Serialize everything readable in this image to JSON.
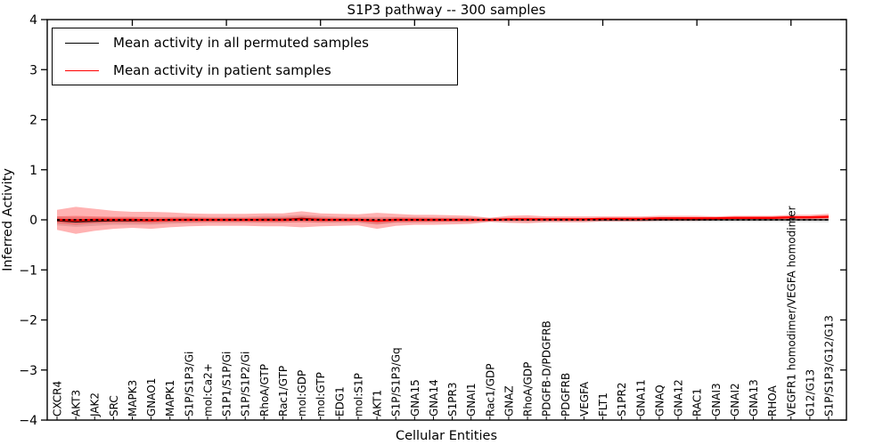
{
  "chart_data": {
    "type": "line",
    "title": "S1P3 pathway -- 300 samples",
    "xlabel": "Cellular Entities",
    "ylabel": "Inferred Activity",
    "ylim": [
      -4,
      4
    ],
    "yticks": [
      "−4",
      "−3",
      "−2",
      "−1",
      "0",
      "1",
      "2",
      "3",
      "4"
    ],
    "ytick_values": [
      -4,
      -3,
      -2,
      -1,
      0,
      1,
      2,
      3,
      4
    ],
    "grid": false,
    "legend_position": "upper-left",
    "zero_line": {
      "style": "dashed",
      "color": "#000000"
    },
    "top_tick_indices": [
      4,
      9,
      14,
      19,
      24,
      29,
      34,
      39
    ],
    "categories": [
      "CXCR4",
      "AKT3",
      "JAK2",
      "SRC",
      "MAPK3",
      "GNAO1",
      "MAPK1",
      "S1P/S1P3/Gi",
      "mol:Ca2+",
      "S1P1/S1P/Gi",
      "S1P/S1P2/Gi",
      "RhoA/GTP",
      "Rac1/GTP",
      "mol:GDP",
      "mol:GTP",
      "EDG1",
      "mol:S1P",
      "AKT1",
      "S1P/S1P3/Gq",
      "GNA15",
      "GNA14",
      "S1PR3",
      "GNAI1",
      "Rac1/GDP",
      "GNAZ",
      "RhoA/GDP",
      "PDGFB-D/PDGFRB",
      "PDGFRB",
      "VEGFA",
      "FLT1",
      "S1PR2",
      "GNA11",
      "GNAQ",
      "GNA12",
      "RAC1",
      "GNAI3",
      "GNAI2",
      "GNA13",
      "RHOA",
      "VEGFR1 homodimer/VEGFA homodimer",
      "G12/G13",
      "S1P/S1P3/G12/G13"
    ],
    "legend": [
      {
        "label": "Mean activity in all permuted samples",
        "color": "#000000"
      },
      {
        "label": "Mean activity in patient samples",
        "color": "#ff0000"
      }
    ],
    "series": [
      {
        "name": "Mean activity in all permuted samples",
        "color": "#000000",
        "width": 1.2,
        "values": [
          -0.02,
          -0.04,
          -0.03,
          -0.02,
          -0.02,
          -0.02,
          -0.01,
          0,
          0,
          0,
          0,
          0.01,
          0.01,
          0.03,
          0.01,
          0,
          0,
          -0.02,
          0,
          0,
          0,
          0,
          0,
          0,
          0,
          0,
          0,
          0,
          0,
          0,
          0,
          0,
          0,
          0,
          0,
          0,
          0,
          0,
          0,
          0,
          0,
          0
        ]
      },
      {
        "name": "Mean activity in patient samples",
        "color": "#ff0000",
        "width": 2.4,
        "values": [
          0,
          -0.01,
          0,
          0,
          0,
          -0.01,
          0,
          0,
          0,
          0,
          0,
          0,
          0,
          0.01,
          0,
          0,
          0,
          -0.02,
          0,
          0,
          0,
          0,
          0,
          0,
          0.01,
          0.01,
          0.01,
          0.01,
          0.01,
          0.02,
          0.02,
          0.02,
          0.03,
          0.03,
          0.03,
          0.03,
          0.04,
          0.04,
          0.04,
          0.05,
          0.05,
          0.06
        ]
      }
    ],
    "bands": [
      {
        "name": "permuted-spread",
        "color": "#000000",
        "opacity": 0.13,
        "center_series": 0,
        "half_widths": [
          0.09,
          0.1,
          0.09,
          0.08,
          0.08,
          0.08,
          0.07,
          0.07,
          0.06,
          0.06,
          0.06,
          0.07,
          0.07,
          0.07,
          0.07,
          0.06,
          0.06,
          0.08,
          0.06,
          0.06,
          0.05,
          0.05,
          0.05,
          0.04,
          0.045,
          0.045,
          0.04,
          0.04,
          0.04,
          0.04,
          0.04,
          0.04,
          0.04,
          0.04,
          0.04,
          0.04,
          0.04,
          0.04,
          0.04,
          0.045,
          0.045,
          0.05
        ]
      },
      {
        "name": "patient-spread-outer",
        "color": "#ff0000",
        "opacity": 0.3,
        "center_series": 1,
        "half_widths": [
          0.2,
          0.27,
          0.22,
          0.18,
          0.16,
          0.17,
          0.15,
          0.13,
          0.12,
          0.12,
          0.12,
          0.13,
          0.13,
          0.16,
          0.13,
          0.12,
          0.11,
          0.16,
          0.12,
          0.1,
          0.1,
          0.09,
          0.08,
          0.04,
          0.07,
          0.08,
          0.06,
          0.06,
          0.06,
          0.05,
          0.05,
          0.05,
          0.05,
          0.05,
          0.05,
          0.04,
          0.04,
          0.04,
          0.04,
          0.05,
          0.05,
          0.06
        ]
      },
      {
        "name": "patient-spread-inner",
        "color": "#ff0000",
        "opacity": 0.25,
        "center_series": 1,
        "half_widths": [
          0.07,
          0.09,
          0.07,
          0.06,
          0.06,
          0.06,
          0.05,
          0.05,
          0.04,
          0.04,
          0.04,
          0.05,
          0.05,
          0.06,
          0.05,
          0.04,
          0.04,
          0.06,
          0.05,
          0.04,
          0.04,
          0.03,
          0.03,
          0.015,
          0.025,
          0.03,
          0.022,
          0.022,
          0.022,
          0.02,
          0.02,
          0.02,
          0.02,
          0.018,
          0.018,
          0.018,
          0.018,
          0.018,
          0.018,
          0.02,
          0.02,
          0.025
        ]
      }
    ]
  }
}
